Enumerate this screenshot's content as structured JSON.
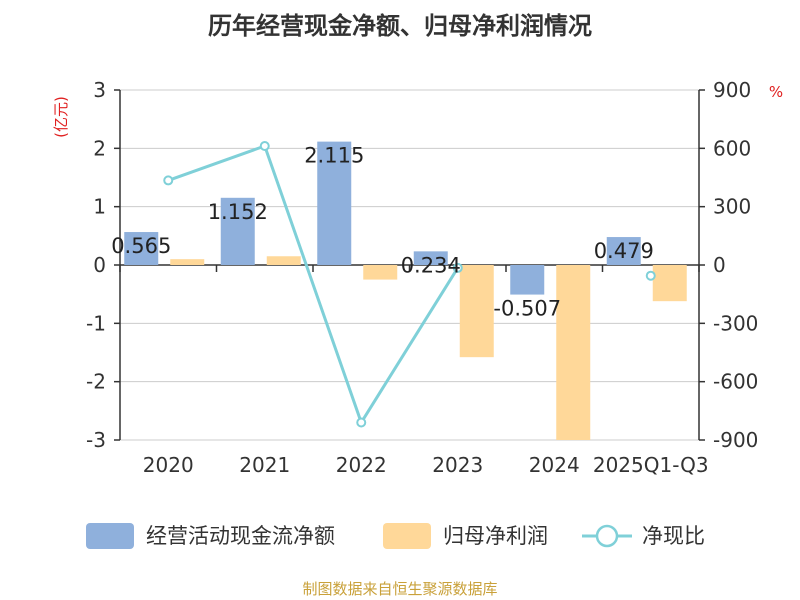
{
  "chart_data": {
    "type": "bar+line",
    "title": "历年经营现金净额、归母净利润情况",
    "categories": [
      "2020",
      "2021",
      "2022",
      "2023",
      "2024",
      "2025Q1-Q3"
    ],
    "series": [
      {
        "name": "经营活动现金流净额",
        "axis": "left",
        "type": "bar",
        "color": "#8fb0dc",
        "values": [
          0.565,
          1.152,
          2.115,
          0.234,
          -0.507,
          0.479
        ],
        "labels": [
          "0.565",
          "1.152",
          "2.115",
          "0.234",
          "-0.507",
          "0.479"
        ]
      },
      {
        "name": "归母净利润",
        "axis": "left",
        "type": "bar",
        "color": "#ffd899",
        "values": [
          0.1,
          0.15,
          -0.25,
          -1.58,
          -3.0,
          -0.62
        ]
      },
      {
        "name": "净现比",
        "axis": "right",
        "type": "line",
        "color": "#7fd0d8",
        "values": [
          435,
          612,
          -810,
          -15,
          null,
          -55
        ]
      }
    ],
    "left_axis": {
      "unit": "(亿元)",
      "min": -3,
      "max": 3,
      "ticks": [
        "3",
        "2",
        "1",
        "0",
        "-1",
        "-2",
        "-3"
      ]
    },
    "right_axis": {
      "unit": "%",
      "min": -900,
      "max": 900,
      "ticks": [
        "900",
        "600",
        "300",
        "0",
        "-300",
        "-600",
        "-900"
      ]
    },
    "unit_color": "#e02020",
    "legend_position": "bottom",
    "source": "制图数据来自恒生聚源数据库",
    "source_color": "#c9a13a"
  }
}
